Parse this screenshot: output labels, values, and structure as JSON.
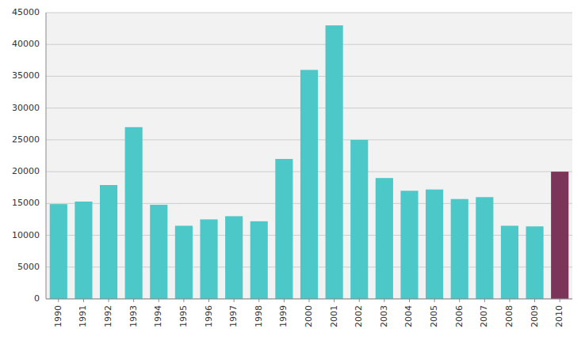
{
  "chart_data": {
    "type": "bar",
    "categories": [
      "1990",
      "1991",
      "1992",
      "1993",
      "1994",
      "1995",
      "1996",
      "1997",
      "1998",
      "1999",
      "2000",
      "2001",
      "2002",
      "2003",
      "2004",
      "2005",
      "2006",
      "2007",
      "2008",
      "2009",
      "2010"
    ],
    "values": [
      14900,
      15300,
      17900,
      27000,
      14800,
      11500,
      12500,
      13000,
      12200,
      22000,
      36000,
      43000,
      25000,
      19000,
      17000,
      17200,
      15700,
      16000,
      11500,
      11400,
      20000
    ],
    "colors": [
      "#4DC8C8",
      "#4DC8C8",
      "#4DC8C8",
      "#4DC8C8",
      "#4DC8C8",
      "#4DC8C8",
      "#4DC8C8",
      "#4DC8C8",
      "#4DC8C8",
      "#4DC8C8",
      "#4DC8C8",
      "#4DC8C8",
      "#4DC8C8",
      "#4DC8C8",
      "#4DC8C8",
      "#4DC8C8",
      "#4DC8C8",
      "#4DC8C8",
      "#4DC8C8",
      "#4DC8C8",
      "#7B3558"
    ],
    "ylim": [
      0,
      45000
    ],
    "yticks": [
      0,
      5000,
      10000,
      15000,
      20000,
      25000,
      30000,
      35000,
      40000,
      45000
    ],
    "grid": true
  }
}
